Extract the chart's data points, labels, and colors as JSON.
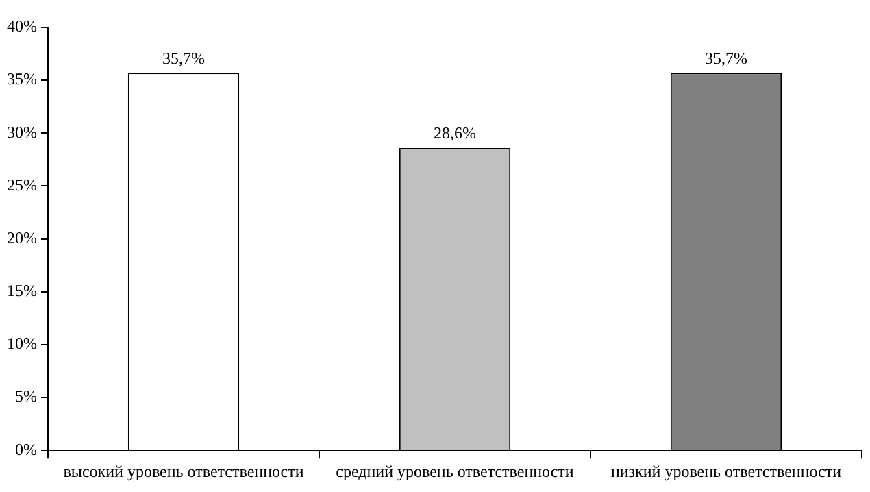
{
  "chart_data": {
    "type": "bar",
    "categories": [
      "высокий уровень ответственности",
      "средний уровень ответственности",
      "низкий уровень ответственности"
    ],
    "values": [
      35.7,
      28.6,
      35.7
    ],
    "colors": [
      "#ffffff",
      "#c0c0c0",
      "#808080"
    ],
    "value_labels": [
      "35,7%",
      "28,6%",
      "35,7%"
    ],
    "ylim": [
      0,
      40
    ],
    "yticks": [
      {
        "value": 0,
        "label": "0%"
      },
      {
        "value": 5,
        "label": "5%"
      },
      {
        "value": 10,
        "label": "10%"
      },
      {
        "value": 15,
        "label": "15%"
      },
      {
        "value": 20,
        "label": "20%"
      },
      {
        "value": 25,
        "label": "25%"
      },
      {
        "value": 30,
        "label": "30%"
      },
      {
        "value": 35,
        "label": "35%"
      },
      {
        "value": 40,
        "label": "40%"
      }
    ],
    "grid": false,
    "legend": false
  }
}
